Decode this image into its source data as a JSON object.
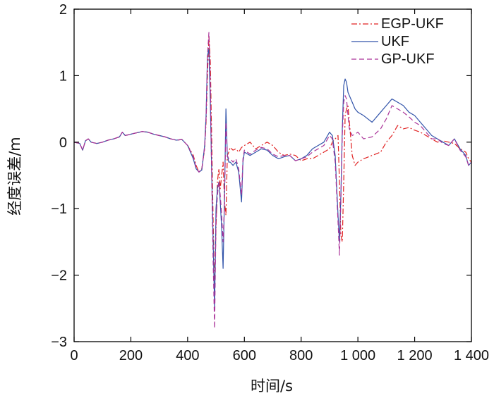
{
  "chart_data": {
    "type": "line",
    "title": "",
    "xlabel": "时间/s",
    "ylabel": "经度误差/m",
    "xlim": [
      0,
      1400
    ],
    "ylim": [
      -3,
      2
    ],
    "xticks": [
      0,
      200,
      400,
      600,
      800,
      1000,
      1200,
      1400
    ],
    "xtick_labels": [
      "0",
      "200",
      "400",
      "600",
      "800",
      "1 000",
      "1 200",
      "1 400"
    ],
    "yticks": [
      2,
      1,
      0,
      -1,
      -2,
      -3
    ],
    "ytick_labels": [
      "2",
      "1",
      "0",
      "−1",
      "−2",
      "−3"
    ],
    "grid": false,
    "legend_position": "top-right",
    "series": [
      {
        "name": "EGP-UKF",
        "color": "#e02020",
        "dash": "dashdot",
        "x": [
          0,
          20,
          30,
          40,
          50,
          60,
          80,
          100,
          120,
          140,
          160,
          170,
          180,
          200,
          220,
          240,
          260,
          280,
          300,
          320,
          340,
          360,
          380,
          400,
          420,
          430,
          440,
          450,
          460,
          465,
          470,
          475,
          480,
          485,
          490,
          495,
          500,
          505,
          510,
          515,
          520,
          525,
          530,
          535,
          540,
          545,
          550,
          560,
          570,
          580,
          590,
          600,
          620,
          640,
          660,
          680,
          700,
          720,
          740,
          760,
          780,
          800,
          820,
          840,
          860,
          880,
          900,
          910,
          920,
          930,
          935,
          940,
          945,
          950,
          955,
          960,
          965,
          970,
          980,
          990,
          1000,
          1020,
          1050,
          1080,
          1100,
          1120,
          1140,
          1160,
          1180,
          1200,
          1220,
          1240,
          1260,
          1280,
          1300,
          1320,
          1340,
          1360,
          1380,
          1390,
          1400
        ],
        "y": [
          0,
          -0.02,
          -0.12,
          0.02,
          0.05,
          0.0,
          -0.02,
          0.0,
          0.03,
          0.05,
          0.08,
          0.15,
          0.1,
          0.12,
          0.14,
          0.16,
          0.15,
          0.12,
          0.1,
          0.08,
          0.05,
          0.03,
          0.04,
          -0.05,
          -0.2,
          -0.35,
          -0.45,
          -0.4,
          -0.1,
          0.3,
          1.0,
          1.6,
          1.2,
          0.0,
          -1.2,
          -2.2,
          -1.3,
          -0.6,
          -0.4,
          -0.7,
          -0.5,
          -0.3,
          -0.9,
          -1.1,
          -0.2,
          -0.15,
          -0.08,
          -0.12,
          -0.1,
          -0.15,
          -0.08,
          -0.05,
          0.0,
          -0.1,
          -0.05,
          0.0,
          -0.05,
          -0.15,
          -0.2,
          -0.18,
          -0.2,
          -0.28,
          -0.25,
          -0.25,
          -0.2,
          -0.15,
          -0.1,
          0.0,
          0.05,
          0.1,
          -0.6,
          -1.4,
          -1.5,
          -0.6,
          0.4,
          0.5,
          0.55,
          0.3,
          -0.2,
          -0.35,
          -0.3,
          -0.25,
          -0.2,
          -0.15,
          0.0,
          0.1,
          0.25,
          0.2,
          0.22,
          0.18,
          0.15,
          0.1,
          0.05,
          0.0,
          0.02,
          0.0,
          -0.02,
          -0.1,
          -0.15,
          -0.25,
          -0.3
        ]
      },
      {
        "name": "UKF",
        "color": "#3355aa",
        "dash": "solid",
        "x": [
          0,
          20,
          30,
          40,
          50,
          60,
          80,
          100,
          120,
          140,
          160,
          170,
          180,
          200,
          220,
          240,
          260,
          280,
          300,
          320,
          340,
          360,
          380,
          400,
          420,
          430,
          440,
          450,
          460,
          465,
          470,
          475,
          480,
          485,
          490,
          495,
          500,
          505,
          510,
          515,
          520,
          525,
          530,
          535,
          540,
          545,
          550,
          560,
          570,
          580,
          590,
          595,
          600,
          620,
          640,
          660,
          680,
          700,
          720,
          740,
          760,
          780,
          800,
          820,
          840,
          860,
          880,
          900,
          910,
          920,
          930,
          935,
          940,
          945,
          950,
          955,
          960,
          965,
          970,
          980,
          990,
          1000,
          1020,
          1050,
          1080,
          1100,
          1120,
          1140,
          1160,
          1180,
          1200,
          1220,
          1240,
          1260,
          1280,
          1300,
          1320,
          1340,
          1360,
          1380,
          1390,
          1400
        ],
        "y": [
          0,
          -0.02,
          -0.12,
          0.02,
          0.05,
          0.0,
          -0.02,
          0.0,
          0.03,
          0.05,
          0.08,
          0.15,
          0.1,
          0.12,
          0.14,
          0.16,
          0.15,
          0.12,
          0.1,
          0.08,
          0.05,
          0.03,
          0.04,
          -0.05,
          -0.25,
          -0.4,
          -0.45,
          -0.42,
          -0.05,
          0.4,
          1.3,
          1.4,
          0.6,
          -0.5,
          -1.5,
          -2.5,
          -1.0,
          -0.7,
          -0.6,
          -0.9,
          -1.3,
          -1.9,
          -0.8,
          0.5,
          -0.2,
          -0.3,
          -0.3,
          -0.35,
          -0.3,
          -0.45,
          -0.9,
          -0.3,
          -0.15,
          -0.2,
          -0.15,
          -0.1,
          -0.12,
          -0.2,
          -0.25,
          -0.22,
          -0.2,
          -0.28,
          -0.25,
          -0.2,
          -0.1,
          -0.05,
          0.0,
          0.15,
          0.1,
          -0.2,
          -1.1,
          -1.5,
          -0.8,
          0.2,
          0.85,
          0.95,
          0.9,
          0.75,
          0.7,
          0.6,
          0.5,
          0.45,
          0.4,
          0.3,
          0.45,
          0.55,
          0.65,
          0.6,
          0.55,
          0.45,
          0.4,
          0.3,
          0.2,
          0.1,
          0.05,
          0.0,
          -0.05,
          0.05,
          -0.1,
          -0.2,
          -0.35,
          -0.3
        ]
      },
      {
        "name": "GP-UKF",
        "color": "#aa3399",
        "dash": "dashed",
        "x": [
          0,
          20,
          30,
          40,
          50,
          60,
          80,
          100,
          120,
          140,
          160,
          170,
          180,
          200,
          220,
          240,
          260,
          280,
          300,
          320,
          340,
          360,
          380,
          400,
          420,
          430,
          440,
          450,
          460,
          465,
          470,
          475,
          480,
          485,
          490,
          495,
          500,
          505,
          510,
          515,
          520,
          525,
          530,
          535,
          540,
          545,
          550,
          560,
          570,
          580,
          590,
          595,
          600,
          620,
          640,
          660,
          680,
          700,
          720,
          740,
          760,
          780,
          800,
          820,
          840,
          860,
          880,
          900,
          910,
          920,
          930,
          935,
          940,
          945,
          950,
          955,
          960,
          965,
          970,
          980,
          990,
          1000,
          1020,
          1050,
          1080,
          1100,
          1120,
          1140,
          1160,
          1180,
          1200,
          1220,
          1240,
          1260,
          1280,
          1300,
          1320,
          1340,
          1360,
          1380,
          1390,
          1400
        ],
        "y": [
          0,
          -0.02,
          -0.12,
          0.02,
          0.05,
          0.0,
          -0.02,
          0.0,
          0.03,
          0.05,
          0.08,
          0.15,
          0.1,
          0.12,
          0.14,
          0.16,
          0.15,
          0.12,
          0.1,
          0.08,
          0.05,
          0.03,
          0.04,
          -0.05,
          -0.22,
          -0.38,
          -0.45,
          -0.4,
          -0.08,
          0.35,
          1.3,
          1.65,
          0.9,
          -0.6,
          -1.8,
          -2.8,
          -1.2,
          -0.8,
          -0.6,
          -0.8,
          -1.1,
          -1.5,
          -0.9,
          0.3,
          -0.2,
          -0.25,
          -0.25,
          -0.3,
          -0.25,
          -0.4,
          -0.8,
          -0.25,
          -0.12,
          -0.18,
          -0.12,
          -0.08,
          -0.1,
          -0.18,
          -0.22,
          -0.2,
          -0.2,
          -0.28,
          -0.25,
          -0.22,
          -0.15,
          -0.1,
          -0.05,
          0.1,
          0.05,
          -0.3,
          -1.2,
          -1.7,
          -0.9,
          0.1,
          0.6,
          0.7,
          0.65,
          0.4,
          0.2,
          0.1,
          0.12,
          0.15,
          0.05,
          0.08,
          0.2,
          0.35,
          0.55,
          0.5,
          0.45,
          0.38,
          0.3,
          0.25,
          0.15,
          0.05,
          0.05,
          -0.02,
          -0.05,
          0.05,
          -0.12,
          -0.22,
          -0.35,
          -0.3
        ]
      }
    ]
  }
}
